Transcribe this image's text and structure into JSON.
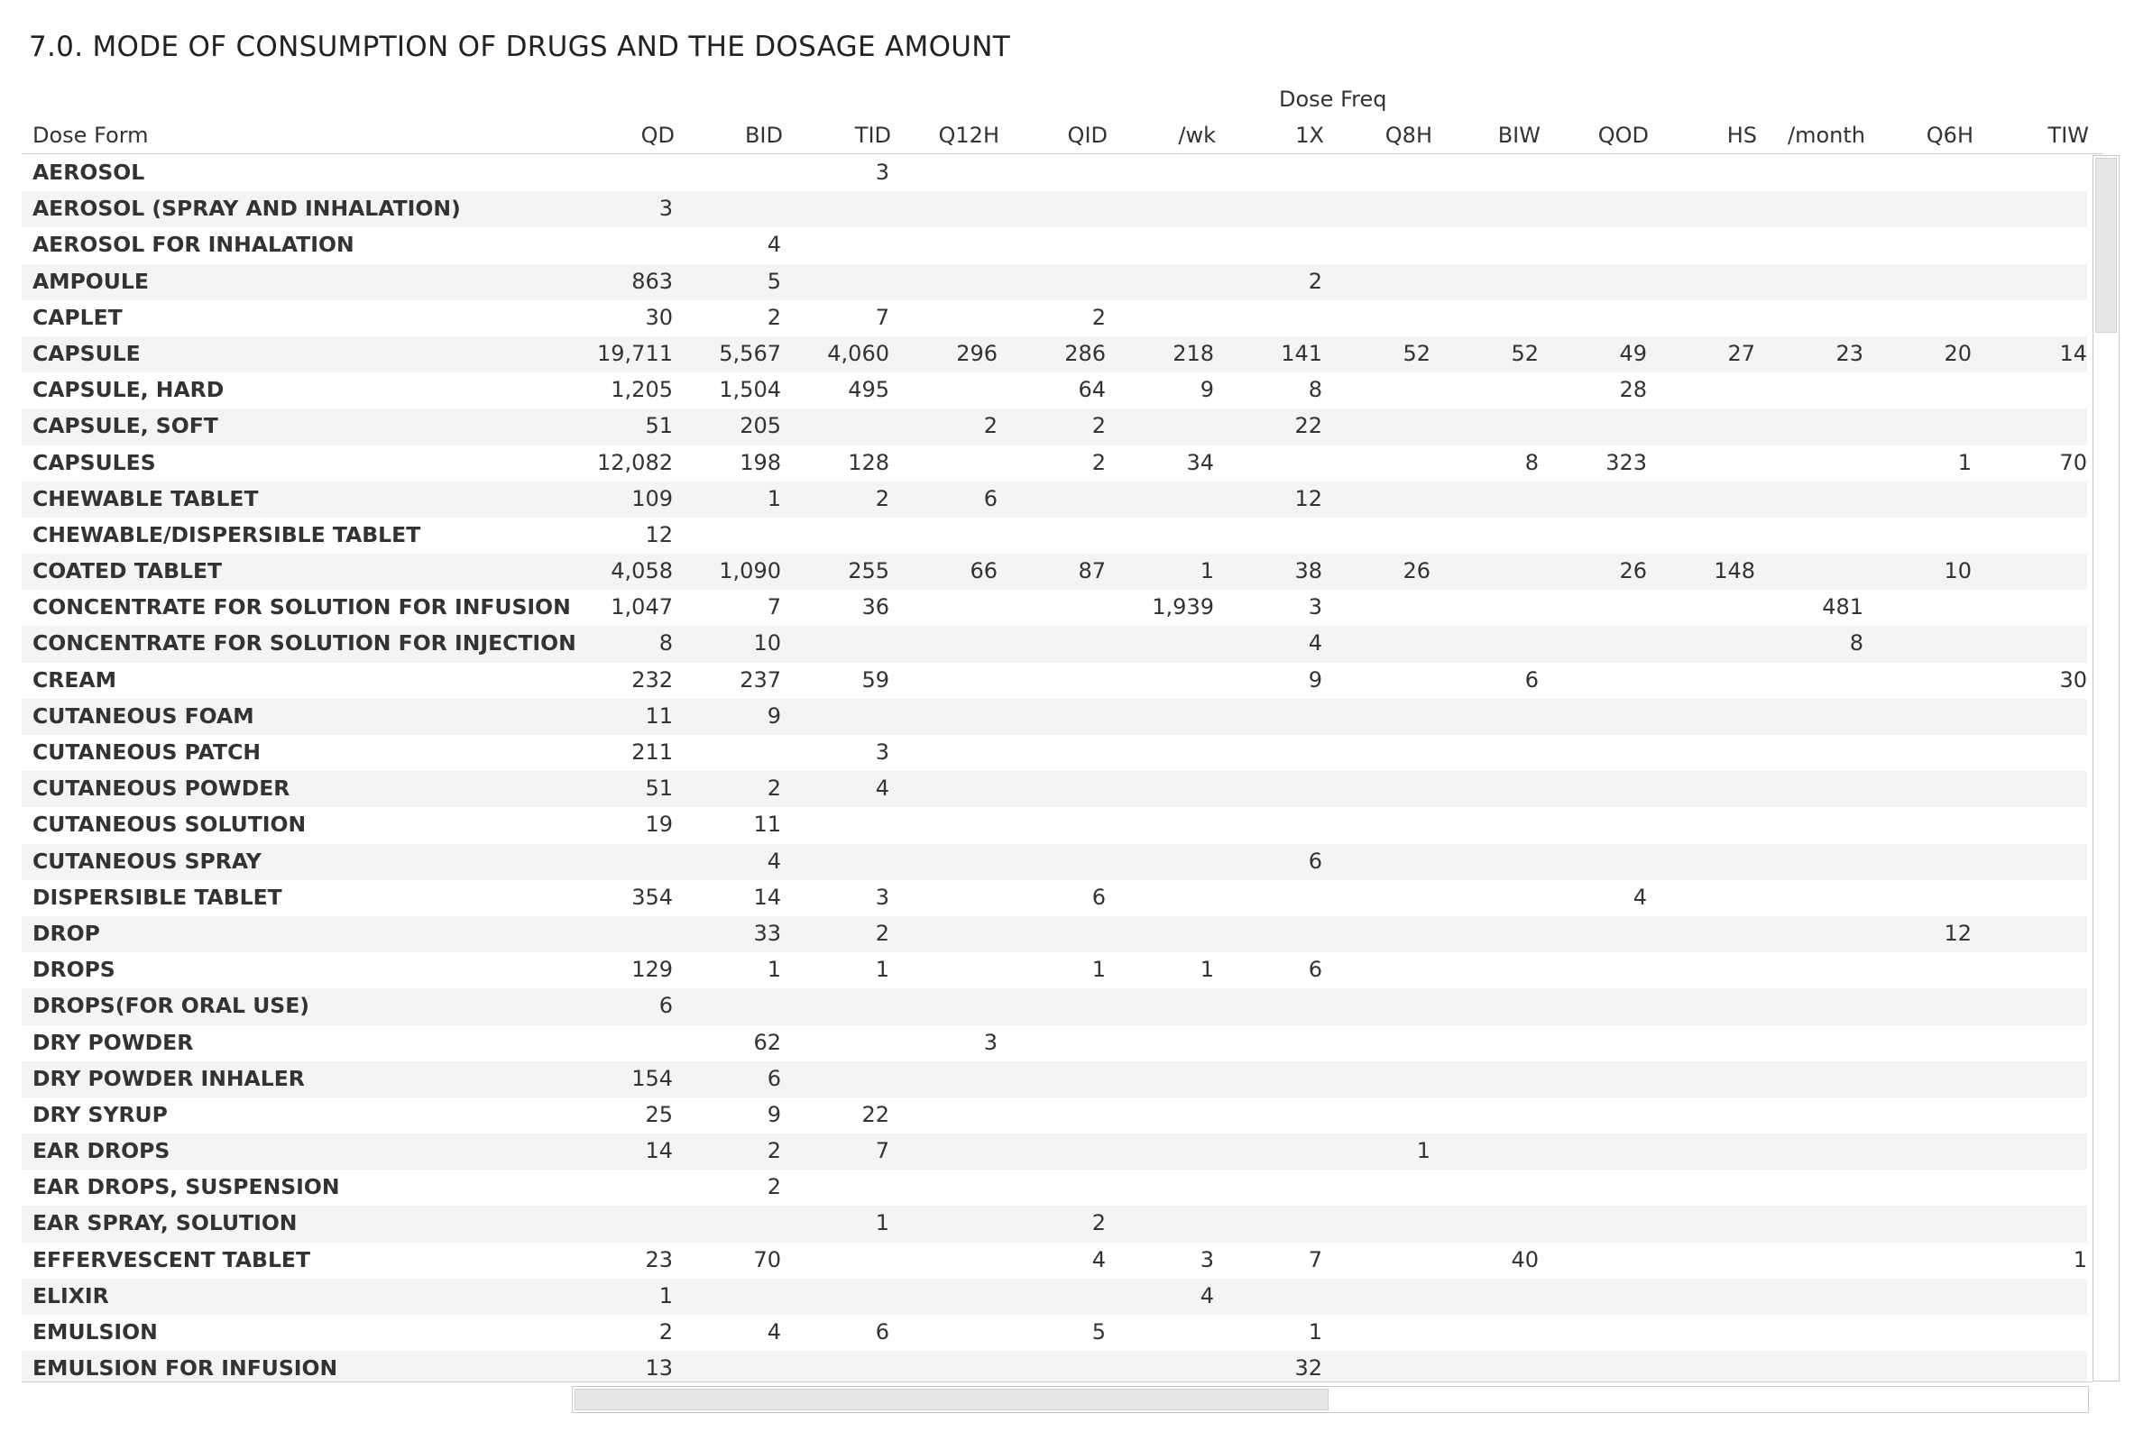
{
  "title": "7.0.  MODE OF CONSUMPTION OF DRUGS AND THE DOSAGE AMOUNT",
  "group_header": "Dose Freq",
  "row_header": "Dose Form",
  "columns": [
    "QD",
    "BID",
    "TID",
    "Q12H",
    "QID",
    "/wk",
    "1X",
    "Q8H",
    "BIW",
    "QOD",
    "HS",
    "/month",
    "Q6H",
    "TIW"
  ],
  "rows": [
    {
      "label": "AEROSOL",
      "values": [
        "",
        "",
        "3",
        "",
        "",
        "",
        "",
        "",
        "",
        "",
        "",
        "",
        "",
        ""
      ]
    },
    {
      "label": "AEROSOL (SPRAY AND INHALATION)",
      "values": [
        "3",
        "",
        "",
        "",
        "",
        "",
        "",
        "",
        "",
        "",
        "",
        "",
        "",
        ""
      ]
    },
    {
      "label": "AEROSOL FOR INHALATION",
      "values": [
        "",
        "4",
        "",
        "",
        "",
        "",
        "",
        "",
        "",
        "",
        "",
        "",
        "",
        ""
      ]
    },
    {
      "label": "AMPOULE",
      "values": [
        "863",
        "5",
        "",
        "",
        "",
        "",
        "2",
        "",
        "",
        "",
        "",
        "",
        "",
        ""
      ]
    },
    {
      "label": "CAPLET",
      "values": [
        "30",
        "2",
        "7",
        "",
        "2",
        "",
        "",
        "",
        "",
        "",
        "",
        "",
        "",
        ""
      ]
    },
    {
      "label": "CAPSULE",
      "values": [
        "19,711",
        "5,567",
        "4,060",
        "296",
        "286",
        "218",
        "141",
        "52",
        "52",
        "49",
        "27",
        "23",
        "20",
        "14"
      ]
    },
    {
      "label": "CAPSULE, HARD",
      "values": [
        "1,205",
        "1,504",
        "495",
        "",
        "64",
        "9",
        "8",
        "",
        "",
        "28",
        "",
        "",
        "",
        ""
      ]
    },
    {
      "label": "CAPSULE, SOFT",
      "values": [
        "51",
        "205",
        "",
        "2",
        "2",
        "",
        "22",
        "",
        "",
        "",
        "",
        "",
        "",
        ""
      ]
    },
    {
      "label": "CAPSULES",
      "values": [
        "12,082",
        "198",
        "128",
        "",
        "2",
        "34",
        "",
        "",
        "8",
        "323",
        "",
        "",
        "1",
        "70"
      ]
    },
    {
      "label": "CHEWABLE TABLET",
      "values": [
        "109",
        "1",
        "2",
        "6",
        "",
        "",
        "12",
        "",
        "",
        "",
        "",
        "",
        "",
        ""
      ]
    },
    {
      "label": "CHEWABLE/DISPERSIBLE TABLET",
      "values": [
        "12",
        "",
        "",
        "",
        "",
        "",
        "",
        "",
        "",
        "",
        "",
        "",
        "",
        ""
      ]
    },
    {
      "label": "COATED TABLET",
      "values": [
        "4,058",
        "1,090",
        "255",
        "66",
        "87",
        "1",
        "38",
        "26",
        "",
        "26",
        "148",
        "",
        "10",
        ""
      ]
    },
    {
      "label": "CONCENTRATE FOR SOLUTION FOR INFUSION",
      "values": [
        "1,047",
        "7",
        "36",
        "",
        "",
        "1,939",
        "3",
        "",
        "",
        "",
        "",
        "481",
        "",
        ""
      ]
    },
    {
      "label": "CONCENTRATE FOR SOLUTION FOR INJECTION",
      "values": [
        "8",
        "10",
        "",
        "",
        "",
        "",
        "4",
        "",
        "",
        "",
        "",
        "8",
        "",
        ""
      ]
    },
    {
      "label": "CREAM",
      "values": [
        "232",
        "237",
        "59",
        "",
        "",
        "",
        "9",
        "",
        "6",
        "",
        "",
        "",
        "",
        "30"
      ]
    },
    {
      "label": "CUTANEOUS FOAM",
      "values": [
        "11",
        "9",
        "",
        "",
        "",
        "",
        "",
        "",
        "",
        "",
        "",
        "",
        "",
        ""
      ]
    },
    {
      "label": "CUTANEOUS PATCH",
      "values": [
        "211",
        "",
        "3",
        "",
        "",
        "",
        "",
        "",
        "",
        "",
        "",
        "",
        "",
        ""
      ]
    },
    {
      "label": "CUTANEOUS POWDER",
      "values": [
        "51",
        "2",
        "4",
        "",
        "",
        "",
        "",
        "",
        "",
        "",
        "",
        "",
        "",
        ""
      ]
    },
    {
      "label": "CUTANEOUS SOLUTION",
      "values": [
        "19",
        "11",
        "",
        "",
        "",
        "",
        "",
        "",
        "",
        "",
        "",
        "",
        "",
        ""
      ]
    },
    {
      "label": "CUTANEOUS SPRAY",
      "values": [
        "",
        "4",
        "",
        "",
        "",
        "",
        "6",
        "",
        "",
        "",
        "",
        "",
        "",
        ""
      ]
    },
    {
      "label": "DISPERSIBLE TABLET",
      "values": [
        "354",
        "14",
        "3",
        "",
        "6",
        "",
        "",
        "",
        "",
        "4",
        "",
        "",
        "",
        ""
      ]
    },
    {
      "label": "DROP",
      "values": [
        "",
        "33",
        "2",
        "",
        "",
        "",
        "",
        "",
        "",
        "",
        "",
        "",
        "12",
        ""
      ]
    },
    {
      "label": "DROPS",
      "values": [
        "129",
        "1",
        "1",
        "",
        "1",
        "1",
        "6",
        "",
        "",
        "",
        "",
        "",
        "",
        ""
      ]
    },
    {
      "label": "DROPS(FOR ORAL USE)",
      "values": [
        "6",
        "",
        "",
        "",
        "",
        "",
        "",
        "",
        "",
        "",
        "",
        "",
        "",
        ""
      ]
    },
    {
      "label": "DRY POWDER",
      "values": [
        "",
        "62",
        "",
        "3",
        "",
        "",
        "",
        "",
        "",
        "",
        "",
        "",
        "",
        ""
      ]
    },
    {
      "label": "DRY POWDER INHALER",
      "values": [
        "154",
        "6",
        "",
        "",
        "",
        "",
        "",
        "",
        "",
        "",
        "",
        "",
        "",
        ""
      ]
    },
    {
      "label": "DRY SYRUP",
      "values": [
        "25",
        "9",
        "22",
        "",
        "",
        "",
        "",
        "",
        "",
        "",
        "",
        "",
        "",
        ""
      ]
    },
    {
      "label": "EAR DROPS",
      "values": [
        "14",
        "2",
        "7",
        "",
        "",
        "",
        "",
        "1",
        "",
        "",
        "",
        "",
        "",
        ""
      ]
    },
    {
      "label": "EAR DROPS, SUSPENSION",
      "values": [
        "",
        "2",
        "",
        "",
        "",
        "",
        "",
        "",
        "",
        "",
        "",
        "",
        "",
        ""
      ]
    },
    {
      "label": "EAR SPRAY, SOLUTION",
      "values": [
        "",
        "",
        "1",
        "",
        "2",
        "",
        "",
        "",
        "",
        "",
        "",
        "",
        "",
        ""
      ]
    },
    {
      "label": "EFFERVESCENT TABLET",
      "values": [
        "23",
        "70",
        "",
        "",
        "4",
        "3",
        "7",
        "",
        "40",
        "",
        "",
        "",
        "",
        "1"
      ]
    },
    {
      "label": "ELIXIR",
      "values": [
        "1",
        "",
        "",
        "",
        "",
        "4",
        "",
        "",
        "",
        "",
        "",
        "",
        "",
        ""
      ]
    },
    {
      "label": "EMULSION",
      "values": [
        "2",
        "4",
        "6",
        "",
        "5",
        "",
        "1",
        "",
        "",
        "",
        "",
        "",
        "",
        ""
      ]
    },
    {
      "label": "EMULSION FOR INFUSION",
      "values": [
        "13",
        "",
        "",
        "",
        "",
        "",
        "32",
        "",
        "",
        "",
        "",
        "",
        "",
        ""
      ]
    }
  ]
}
